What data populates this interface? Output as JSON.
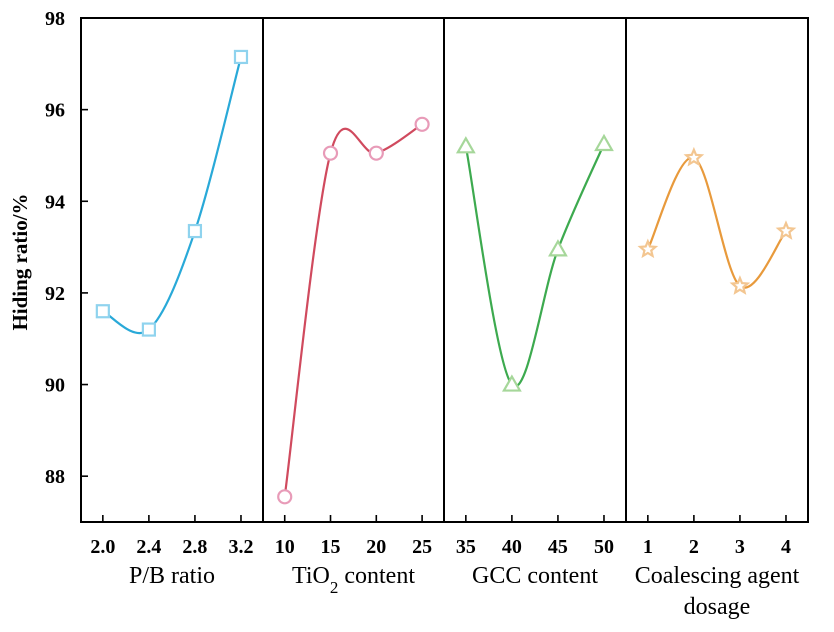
{
  "chart_data": {
    "type": "line",
    "ylabel": "Hiding ratio/%",
    "ylim": [
      87,
      98
    ],
    "yticks": [
      88,
      90,
      92,
      94,
      96,
      98
    ],
    "panels": [
      {
        "xlabel_parts": [
          {
            "text": "P/B ratio"
          }
        ],
        "series_name": "P/B ratio",
        "color": "#29a9d8",
        "marker_color": "#8fd3ee",
        "marker": "square",
        "x": [
          2.0,
          2.4,
          2.8,
          3.2
        ],
        "tick_labels": [
          "2.0",
          "2.4",
          "2.8",
          "3.2"
        ],
        "values": [
          91.6,
          91.2,
          93.35,
          97.15
        ]
      },
      {
        "xlabel_parts": [
          {
            "text": "TiO"
          },
          {
            "text": "2",
            "sub": true
          },
          {
            "text": " content"
          }
        ],
        "series_name": "TiO2 content",
        "color": "#d04a5e",
        "marker_color": "#e89bb8",
        "marker": "circle",
        "x": [
          10,
          15,
          20,
          25
        ],
        "tick_labels": [
          "10",
          "15",
          "20",
          "25"
        ],
        "values": [
          87.55,
          95.05,
          95.05,
          95.68
        ]
      },
      {
        "xlabel_parts": [
          {
            "text": "GCC content"
          }
        ],
        "series_name": "GCC content",
        "color": "#3daa4f",
        "marker_color": "#a6d79a",
        "marker": "triangle",
        "x": [
          35,
          40,
          45,
          50
        ],
        "tick_labels": [
          "35",
          "40",
          "45",
          "50"
        ],
        "values": [
          95.2,
          90.0,
          92.95,
          95.25
        ]
      },
      {
        "xlabel_parts": [
          {
            "text": "Coalescing agent"
          }
        ],
        "xlabel_line2": "dosage",
        "series_name": "Coalescing agent dosage",
        "color": "#e89a3c",
        "marker_color": "#f3c691",
        "marker": "star",
        "x": [
          1,
          2,
          3,
          4
        ],
        "tick_labels": [
          "1",
          "2",
          "3",
          "4"
        ],
        "values": [
          92.95,
          94.95,
          92.15,
          93.35
        ]
      }
    ]
  }
}
